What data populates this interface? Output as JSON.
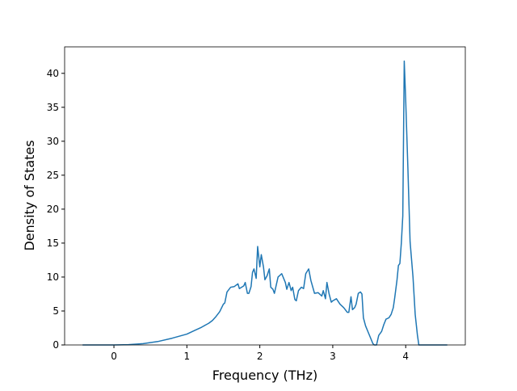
{
  "chart_data": {
    "type": "line",
    "x_label": "Frequency (THz)",
    "y_label": "Density of States",
    "xlim": [
      -0.676,
      4.817
    ],
    "ylim": [
      0,
      43.9
    ],
    "xticks": [
      0,
      1,
      2,
      3,
      4
    ],
    "yticks": [
      0,
      5,
      10,
      15,
      20,
      25,
      30,
      35,
      40
    ],
    "series": [
      {
        "color": "#1f77b4",
        "x": [
          -0.43,
          0,
          0.2,
          0.4,
          0.6,
          0.8,
          1.0,
          1.1,
          1.2,
          1.3,
          1.35,
          1.4,
          1.45,
          1.5,
          1.52,
          1.55,
          1.6,
          1.65,
          1.7,
          1.72,
          1.78,
          1.8,
          1.83,
          1.85,
          1.88,
          1.9,
          1.92,
          1.95,
          1.97,
          2.0,
          2.02,
          2.05,
          2.07,
          2.1,
          2.13,
          2.15,
          2.18,
          2.2,
          2.25,
          2.3,
          2.35,
          2.37,
          2.4,
          2.43,
          2.45,
          2.48,
          2.5,
          2.53,
          2.57,
          2.6,
          2.63,
          2.67,
          2.7,
          2.75,
          2.8,
          2.85,
          2.87,
          2.9,
          2.92,
          2.95,
          2.98,
          3.0,
          3.05,
          3.1,
          3.15,
          3.2,
          3.22,
          3.25,
          3.27,
          3.3,
          3.32,
          3.35,
          3.38,
          3.4,
          3.42,
          3.45,
          3.5,
          3.55,
          3.57,
          3.6,
          3.63,
          3.67,
          3.7,
          3.73,
          3.77,
          3.8,
          3.83,
          3.85,
          3.88,
          3.9,
          3.92,
          3.94,
          3.96,
          3.98,
          4.0,
          4.03,
          4.06,
          4.1,
          4.13,
          4.16,
          4.18,
          4.57
        ],
        "values": [
          0,
          0,
          0.05,
          0.2,
          0.5,
          1.0,
          1.6,
          2.1,
          2.6,
          3.2,
          3.6,
          4.2,
          4.9,
          6.0,
          6.2,
          7.8,
          8.5,
          8.6,
          9.0,
          8.3,
          8.7,
          9.2,
          7.6,
          7.6,
          8.6,
          10.7,
          11.2,
          9.8,
          14.5,
          11.5,
          13.3,
          11.5,
          9.6,
          10.2,
          11.2,
          8.5,
          8.2,
          7.6,
          10.0,
          10.5,
          9.2,
          8.2,
          9.2,
          8.0,
          8.5,
          6.7,
          6.5,
          8.0,
          8.5,
          8.3,
          10.5,
          11.2,
          9.5,
          7.6,
          7.7,
          7.2,
          8.0,
          6.8,
          9.2,
          7.5,
          6.3,
          6.5,
          6.8,
          6.0,
          5.5,
          4.8,
          4.8,
          7.1,
          5.2,
          5.5,
          6.0,
          7.6,
          7.8,
          7.5,
          4.0,
          2.8,
          1.5,
          0.2,
          0,
          0,
          1.4,
          2.0,
          3.0,
          3.8,
          4.0,
          4.5,
          5.5,
          7.0,
          9.5,
          11.7,
          12.0,
          15,
          19,
          41.8,
          36,
          26,
          15.2,
          10,
          4.5,
          1.5,
          0,
          0
        ]
      }
    ]
  }
}
